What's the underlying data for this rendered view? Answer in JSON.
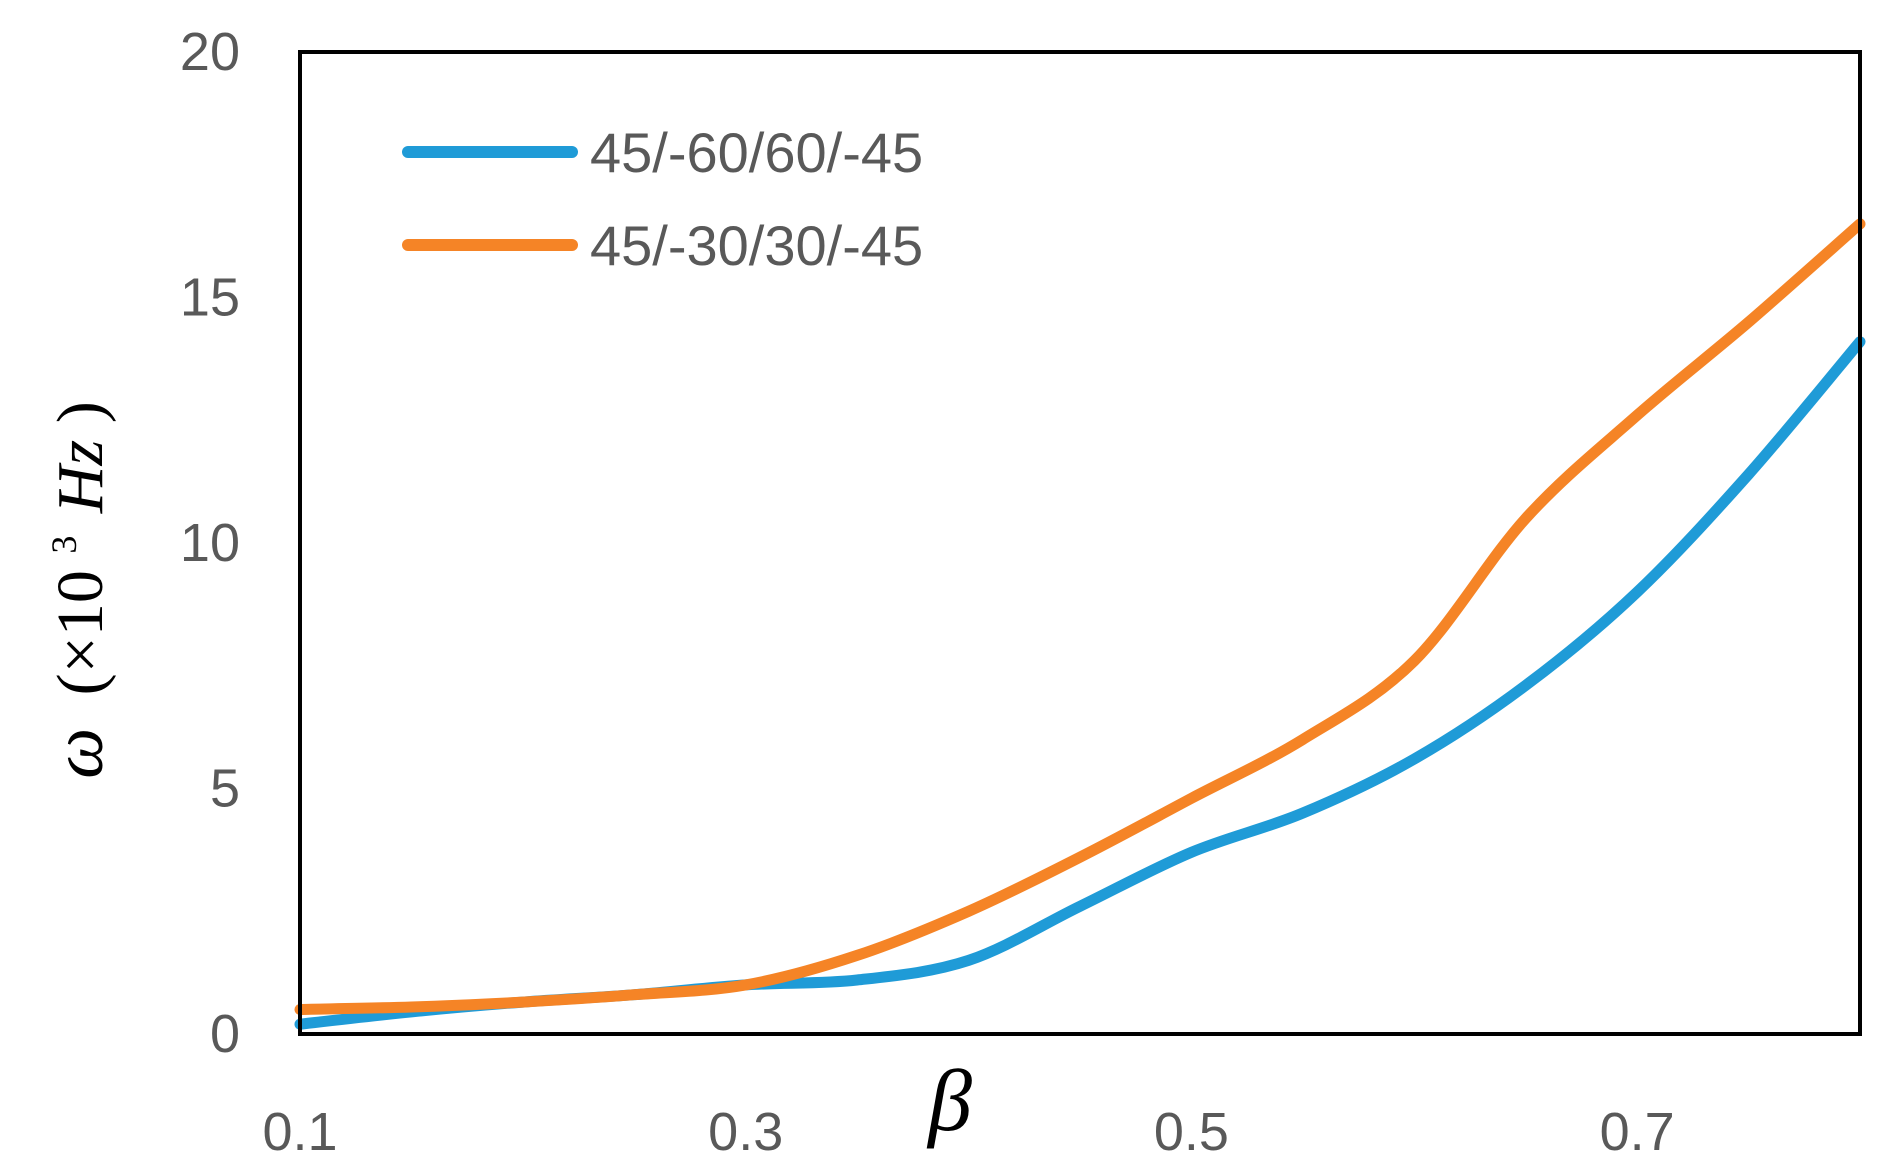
{
  "chart_data": {
    "type": "line",
    "title": "",
    "xlabel": "β",
    "ylabel": {
      "symbol": "ω",
      "open": "(×10",
      "exponent": "3",
      "unit": "Hz",
      "close": ")"
    },
    "xlim": [
      0.1,
      0.8
    ],
    "ylim": [
      0,
      20
    ],
    "xticks": [
      "0.1",
      "0.3",
      "0.5",
      "0.7"
    ],
    "yticks": [
      "0",
      "5",
      "10",
      "15",
      "20"
    ],
    "grid": false,
    "legend_position": "top-left",
    "series": [
      {
        "name": "45/-60/60/-45",
        "color": "#1F9BD7",
        "x": [
          0.1,
          0.15,
          0.2,
          0.25,
          0.3,
          0.35,
          0.4,
          0.45,
          0.5,
          0.55,
          0.6,
          0.65,
          0.7,
          0.75,
          0.8
        ],
        "y": [
          0.2,
          0.45,
          0.65,
          0.8,
          1.0,
          1.1,
          1.5,
          2.6,
          3.7,
          4.5,
          5.6,
          7.1,
          9.0,
          11.4,
          14.1
        ]
      },
      {
        "name": "45/-30/30/-45",
        "color": "#F58426",
        "x": [
          0.1,
          0.15,
          0.2,
          0.25,
          0.3,
          0.35,
          0.4,
          0.45,
          0.5,
          0.55,
          0.6,
          0.65,
          0.7,
          0.75,
          0.8
        ],
        "y": [
          0.5,
          0.55,
          0.65,
          0.8,
          1.0,
          1.6,
          2.5,
          3.6,
          4.8,
          6.0,
          7.6,
          10.5,
          12.6,
          14.5,
          16.5
        ]
      }
    ]
  }
}
